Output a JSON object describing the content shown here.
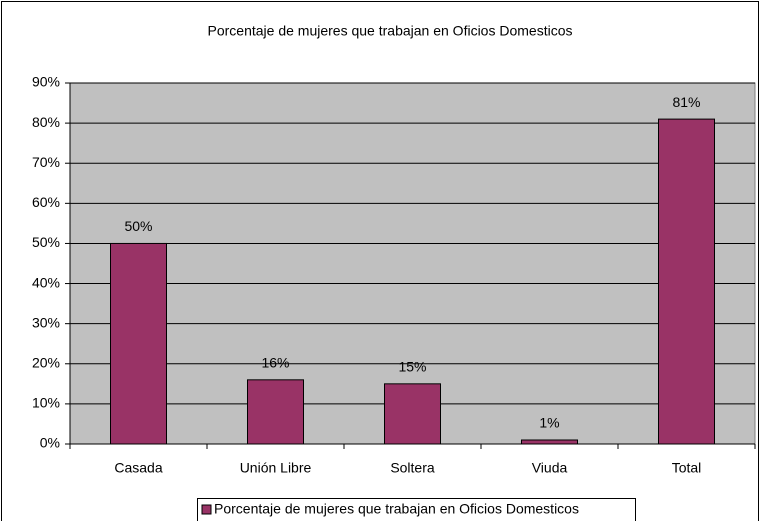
{
  "chart_data": {
    "type": "bar",
    "title": "Porcentaje de mujeres que trabajan en Oficios Domesticos",
    "categories": [
      "Casada",
      "Unión Libre",
      "Soltera",
      "Viuda",
      "Total"
    ],
    "series": [
      {
        "name": "Porcentaje de mujeres que trabajan en Oficios Domesticos",
        "color": "#993366",
        "values": [
          50,
          16,
          15,
          1,
          81
        ],
        "value_labels": [
          "50%",
          "16%",
          "15%",
          "1%",
          "81%"
        ]
      }
    ],
    "ylim": [
      0,
      90
    ],
    "yticks": [
      {
        "value": 0,
        "label": "0%"
      },
      {
        "value": 10,
        "label": "10%"
      },
      {
        "value": 20,
        "label": "20%"
      },
      {
        "value": 30,
        "label": "30%"
      },
      {
        "value": 40,
        "label": "40%"
      },
      {
        "value": 50,
        "label": "50%"
      },
      {
        "value": 60,
        "label": "60%"
      },
      {
        "value": 70,
        "label": "70%"
      },
      {
        "value": 80,
        "label": "80%"
      },
      {
        "value": 90,
        "label": "90%"
      }
    ],
    "grid": true,
    "plot_background": "#c0c0c0",
    "legend": "bottom"
  }
}
